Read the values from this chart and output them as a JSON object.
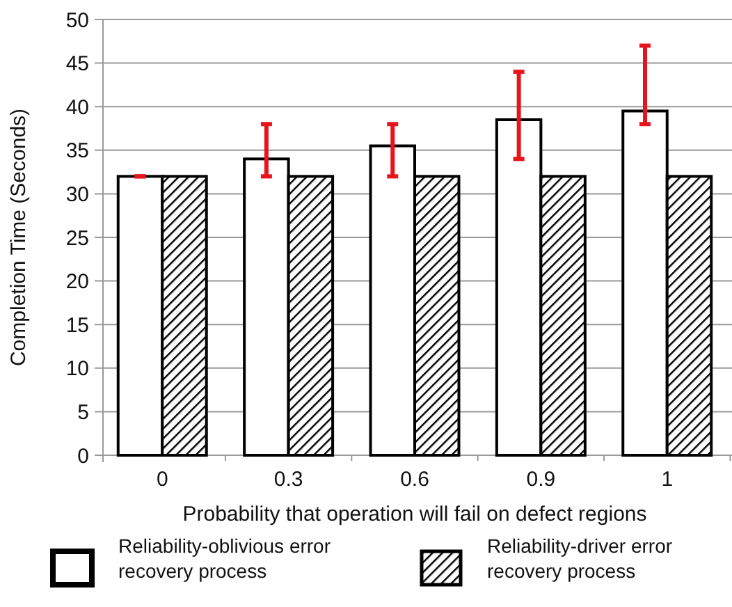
{
  "chart_data": {
    "type": "bar",
    "xlabel": "Probability that operation will fail on defect regions",
    "ylabel": "Completion Time (Seconds)",
    "categories": [
      "0",
      "0.3",
      "0.6",
      "0.9",
      "1"
    ],
    "series": [
      {
        "name": "Reliability-oblivious error recovery process",
        "color": "#ffffff",
        "values": [
          32,
          34,
          35.5,
          38.5,
          39.5
        ],
        "errors": [
          0,
          [
            32,
            38
          ],
          [
            32,
            38
          ],
          [
            34,
            44
          ],
          [
            38,
            47
          ]
        ]
      },
      {
        "name": "Reliability-driver error recovery process",
        "color": "#000000",
        "values": [
          32,
          32,
          32,
          32,
          32
        ]
      }
    ],
    "ylim": [
      0,
      50
    ],
    "yticks": [
      0,
      5,
      10,
      15,
      20,
      25,
      30,
      35,
      40,
      45,
      50
    ],
    "grid": "y",
    "legend": "bottom"
  }
}
